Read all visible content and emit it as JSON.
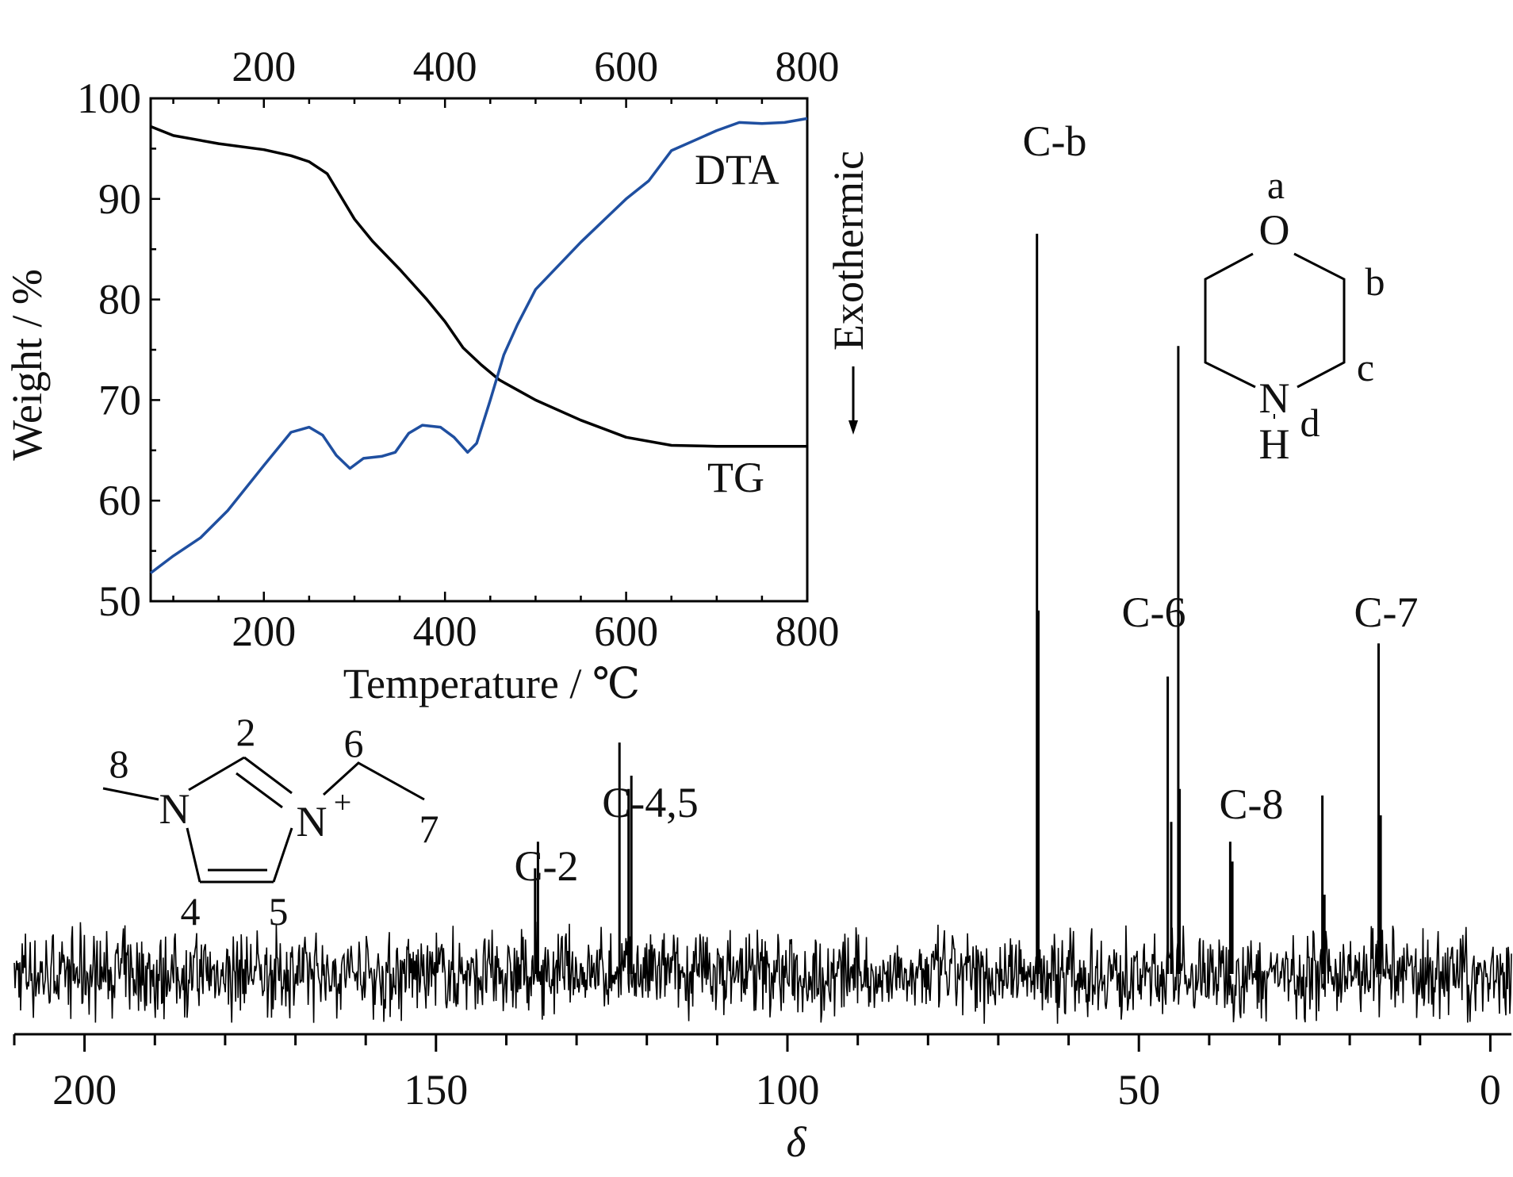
{
  "chart_data": [
    {
      "type": "line",
      "xlabel": "δ",
      "ylabel": "",
      "title": "",
      "xlim": [
        210,
        -3
      ],
      "x_reversed": true,
      "xticks": [
        200,
        150,
        100,
        50,
        0
      ],
      "xtick_labels": [
        "200",
        "150",
        "100",
        "50",
        "0"
      ],
      "baseline_level": 0,
      "ylim": [
        -0.15,
        1.2
      ],
      "peaks": [
        {
          "label": "C-2",
          "positions": [
            135.9,
            135.5
          ],
          "heights": [
            0.16,
            0.2
          ]
        },
        {
          "label": "C-4,5",
          "positions": [
            123.9,
            122.6,
            122.2
          ],
          "heights": [
            0.35,
            0.28,
            0.3
          ]
        },
        {
          "label": "C-b",
          "positions": [
            64.5,
            64.3
          ],
          "heights": [
            1.12,
            0.55
          ]
        },
        {
          "label": "C-6",
          "positions": [
            45.9,
            45.4,
            44.4,
            44.2
          ],
          "heights": [
            0.45,
            0.23,
            0.95,
            0.28
          ]
        },
        {
          "label": "C-8",
          "positions": [
            37.0,
            36.7
          ],
          "heights": [
            0.2,
            0.17
          ]
        },
        {
          "label": "C-7",
          "positions": [
            23.9,
            23.6,
            15.9,
            15.6
          ],
          "heights": [
            0.27,
            0.12,
            0.5,
            0.24
          ]
        }
      ],
      "noise_amplitude": 0.05,
      "line_color": "#000000"
    },
    {
      "type": "line",
      "inset": true,
      "xlabel": "Temperature / ℃",
      "ylabel": "Weight / %",
      "right_label": "Exothermic",
      "xlim": [
        75,
        800
      ],
      "ylim": [
        50,
        100
      ],
      "xticks": [
        200,
        400,
        600,
        800
      ],
      "yticks": [
        50,
        60,
        70,
        80,
        90,
        100
      ],
      "top_xticks": [
        200,
        400,
        600,
        800
      ],
      "series": [
        {
          "name": "TG",
          "color": "#000000",
          "x": [
            75,
            100,
            150,
            200,
            230,
            250,
            270,
            280,
            300,
            320,
            350,
            380,
            400,
            420,
            440,
            460,
            480,
            500,
            550,
            600,
            650,
            700,
            750,
            800
          ],
          "y": [
            97.2,
            96.3,
            95.5,
            94.9,
            94.3,
            93.7,
            92.5,
            91.0,
            88.0,
            85.8,
            83.0,
            80.0,
            77.8,
            75.2,
            73.5,
            72.0,
            71.0,
            70.0,
            68.0,
            66.3,
            65.5,
            65.4,
            65.4,
            65.4
          ]
        },
        {
          "name": "DTA",
          "color": "#1f4fa0",
          "x": [
            75,
            100,
            130,
            160,
            200,
            230,
            250,
            265,
            280,
            295,
            310,
            330,
            345,
            360,
            375,
            395,
            410,
            425,
            435,
            450,
            465,
            480,
            500,
            550,
            600,
            625,
            650,
            675,
            700,
            725,
            750,
            775,
            800
          ],
          "y": [
            52.8,
            54.5,
            56.3,
            59.0,
            63.5,
            66.8,
            67.3,
            66.5,
            64.5,
            63.2,
            64.2,
            64.4,
            64.8,
            66.7,
            67.5,
            67.3,
            66.3,
            64.8,
            65.7,
            70.0,
            74.5,
            77.5,
            81.0,
            85.7,
            90.0,
            91.8,
            94.8,
            95.8,
            96.8,
            97.6,
            97.5,
            97.6,
            98.0
          ]
        }
      ]
    }
  ],
  "annotations": {
    "peak_labels": [
      "C-b",
      "C-6",
      "C-7",
      "C-8",
      "C-4,5",
      "C-2"
    ],
    "morpholine": {
      "atoms": [
        "O",
        "N",
        "H"
      ],
      "positions": [
        "a",
        "b",
        "c",
        "d"
      ]
    },
    "imidazolium": {
      "atoms": [
        "N",
        "N"
      ],
      "charge": "+",
      "numbers": [
        "2",
        "4",
        "5",
        "6",
        "7",
        "8"
      ]
    }
  }
}
